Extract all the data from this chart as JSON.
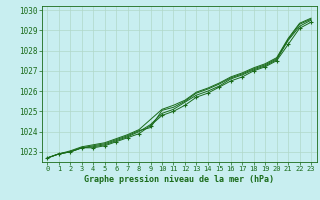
{
  "title": "Graphe pression niveau de la mer (hPa)",
  "bg_color": "#c8eef0",
  "grid_color": "#b0d8c8",
  "line_color": "#1a6b1a",
  "marker_color": "#1a6b1a",
  "xlim": [
    -0.5,
    23.5
  ],
  "ylim": [
    1022.5,
    1030.2
  ],
  "yticks": [
    1023,
    1024,
    1025,
    1026,
    1027,
    1028,
    1029,
    1030
  ],
  "xticks": [
    0,
    1,
    2,
    3,
    4,
    5,
    6,
    7,
    8,
    9,
    10,
    11,
    12,
    13,
    14,
    15,
    16,
    17,
    18,
    19,
    20,
    21,
    22,
    23
  ],
  "series": [
    [
      1022.7,
      1022.9,
      1023.0,
      1023.2,
      1023.2,
      1023.3,
      1023.5,
      1023.7,
      1023.9,
      1024.3,
      1024.8,
      1025.0,
      1025.3,
      1025.7,
      1025.9,
      1026.2,
      1026.5,
      1026.7,
      1027.0,
      1027.2,
      1027.5,
      1028.3,
      1029.1,
      1029.4
    ],
    [
      1022.7,
      1022.9,
      1023.0,
      1023.2,
      1023.25,
      1023.35,
      1023.55,
      1023.75,
      1024.0,
      1024.35,
      1024.9,
      1025.1,
      1025.45,
      1025.8,
      1026.0,
      1026.25,
      1026.6,
      1026.8,
      1027.05,
      1027.25,
      1027.55,
      1028.5,
      1029.2,
      1029.5
    ],
    [
      1022.7,
      1022.9,
      1023.0,
      1023.2,
      1023.3,
      1023.4,
      1023.6,
      1023.8,
      1024.05,
      1024.2,
      1025.05,
      1025.2,
      1025.5,
      1025.9,
      1026.1,
      1026.35,
      1026.65,
      1026.85,
      1027.1,
      1027.3,
      1027.6,
      1028.55,
      1029.3,
      1029.55
    ],
    [
      1022.7,
      1022.9,
      1023.05,
      1023.25,
      1023.35,
      1023.45,
      1023.65,
      1023.85,
      1024.1,
      1024.6,
      1025.1,
      1025.3,
      1025.55,
      1025.95,
      1026.15,
      1026.4,
      1026.7,
      1026.9,
      1027.15,
      1027.35,
      1027.65,
      1028.6,
      1029.35,
      1029.6
    ]
  ]
}
